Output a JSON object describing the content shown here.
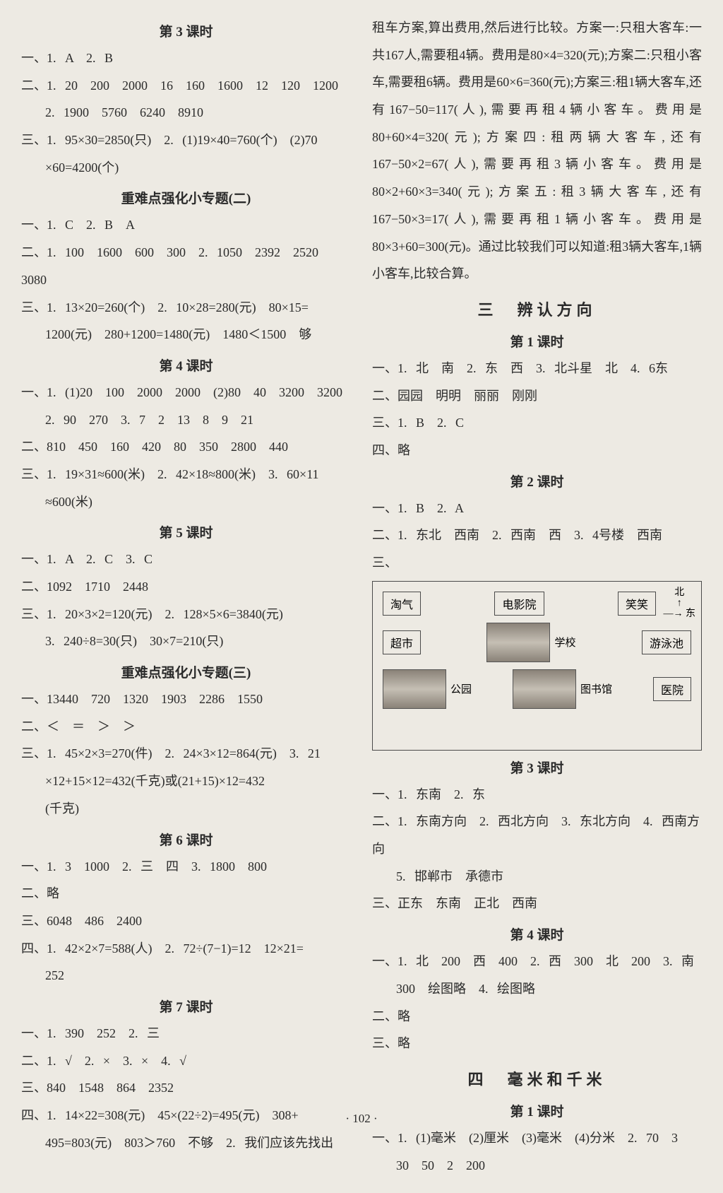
{
  "left": {
    "h1": "第 3 课时",
    "s3_1": "一、1. A　2. B",
    "s3_2": "二、1. 20　200　2000　16　160　1600　12　120　1200",
    "s3_2b": "2. 1900　5760　6240　8910",
    "s3_3": "三、1. 95×30=2850(只)　2. (1)19×40=760(个)　(2)70",
    "s3_3b": "×60=4200(个)",
    "h2": "重难点强化小专题(二)",
    "z2_1": "一、1. C　2. B　A",
    "z2_2": "二、1. 100　1600　600　300　2. 1050　2392　2520　3080",
    "z2_3": "三、1. 13×20=260(个)　2. 10×28=280(元)　80×15=",
    "z2_3b": "1200(元)　280+1200=1480(元)　1480＜1500　够",
    "h3": "第 4 课时",
    "s4_1": "一、1. (1)20　100　2000　2000　(2)80　40　3200　3200",
    "s4_1b": "2. 90　270　3. 7　2　13　8　9　21",
    "s4_2": "二、810　450　160　420　80　350　2800　440",
    "s4_3": "三、1. 19×31≈600(米)　2. 42×18≈800(米)　3. 60×11",
    "s4_3b": "≈600(米)",
    "h4": "第 5 课时",
    "s5_1": "一、1. A　2. C　3. C",
    "s5_2": "二、1092　1710　2448",
    "s5_3": "三、1. 20×3×2=120(元)　2. 128×5×6=3840(元)",
    "s5_3b": "3. 240÷8=30(只)　30×7=210(只)",
    "h5": "重难点强化小专题(三)",
    "z3_1": "一、13440　720　1320　1903　2286　1550",
    "z3_2": "二、＜　＝　＞　＞",
    "z3_3": "三、1. 45×2×3=270(件)　2. 24×3×12=864(元)　3. 21",
    "z3_3b": "×12+15×12=432(千克)或(21+15)×12=432",
    "z3_3c": "(千克)",
    "h6": "第 6 课时",
    "s6_1": "一、1. 3　1000　2. 三　四　3. 1800　800",
    "s6_2": "二、略",
    "s6_3": "三、6048　486　2400",
    "s6_4": "四、1. 42×2×7=588(人)　2. 72÷(7−1)=12　12×21=",
    "s6_4b": "252",
    "h7": "第 7 课时",
    "s7_1": "一、1. 390　252　2. 三",
    "s7_2": "二、1. √　2. ×　3. ×　4. √",
    "s7_3": "三、840　1548　864　2352",
    "s7_4": "四、1. 14×22=308(元)　45×(22÷2)=495(元)　308+",
    "s7_4b": "495=803(元)　803＞760　不够　2. 我们应该先找出"
  },
  "right": {
    "para": "租车方案,算出费用,然后进行比较。方案一:只租大客车:一共167人,需要租4辆。费用是80×4=320(元);方案二:只租小客车,需要租6辆。费用是60×6=360(元);方案三:租1辆大客车,还有167−50=117(人),需要再租4辆小客车。费用是80+60×4=320(元);方案四:租两辆大客车,还有167−50×2=67(人),需要再租3辆小客车。费用是80×2+60×3=340(元);方案五:租3辆大客车,还有167−50×3=17(人),需要再租1辆小客车。费用是80×3+60=300(元)。通过比较我们可以知道:租3辆大客车,1辆小客车,比较合算。",
    "hA": "三　辨认方向",
    "hA1": "第 1 课时",
    "a1_1": "一、1. 北　南　2. 东　西　3. 北斗星　北　4. 6东",
    "a1_2": "二、园园　明明　丽丽　刚刚",
    "a1_3": "三、1. B　2. C",
    "a1_4": "四、略",
    "hA2": "第 2 课时",
    "a2_1": "一、1. B　2. A",
    "a2_2": "二、1. 东北　西南　2. 西南　西　3. 4号楼　西南",
    "a2_3": "三、",
    "diagram": {
      "tq": "淘气",
      "dyy": "电影院",
      "xx": "笑笑",
      "cs": "超市",
      "school": "学校",
      "yyc": "游泳池",
      "gy": "公园",
      "tsg": "图书馆",
      "yy": "医院",
      "north": "北",
      "east": "东"
    },
    "hA3": "第 3 课时",
    "a3_1": "一、1. 东南　2. 东",
    "a3_2": "二、1. 东南方向　2. 西北方向　3. 东北方向　4. 西南方向",
    "a3_2b": "5. 邯郸市　承德市",
    "a3_3": "三、正东　东南　正北　西南",
    "hA4": "第 4 课时",
    "a4_1": "一、1. 北　200　西　400　2. 西　300　北　200　3. 南",
    "a4_1b": "300　绘图略　4. 绘图略",
    "a4_2": "二、略",
    "a4_3": "三、略",
    "hB": "四　毫米和千米",
    "hB1": "第 1 课时",
    "b1_1": "一、1. (1)毫米　(2)厘米　(3)毫米　(4)分米　2. 70　3",
    "b1_1b": "30　50　2　200"
  },
  "pageNum": "· 102 ·"
}
